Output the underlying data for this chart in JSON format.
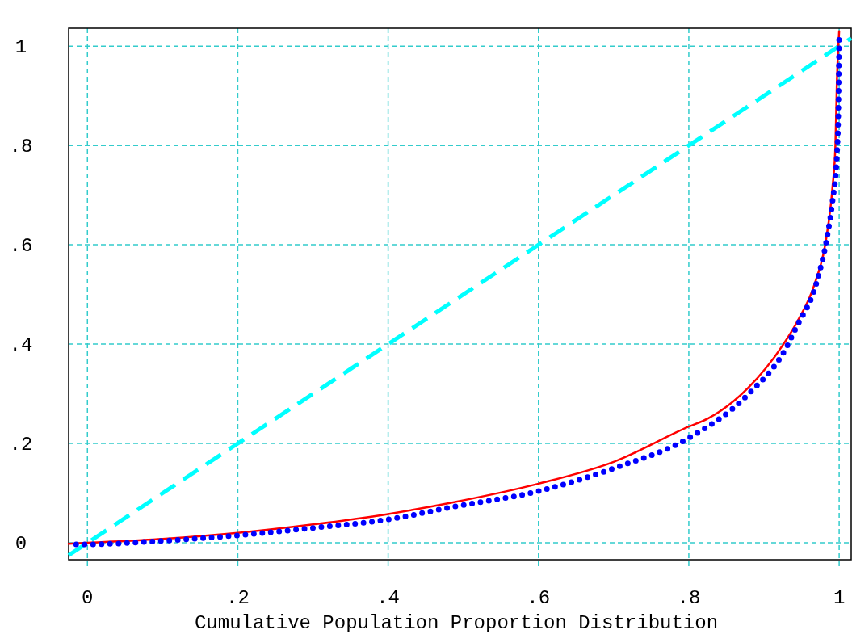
{
  "chart_data": {
    "type": "line",
    "xlabel": "Cumulative Population Proportion Distribution",
    "xlim": [
      -0.025,
      1.016
    ],
    "ylim": [
      -0.034,
      1.036
    ],
    "xticks": [
      {
        "value": 0,
        "label": "0"
      },
      {
        "value": 0.2,
        "label": ".2"
      },
      {
        "value": 0.4,
        "label": ".4"
      },
      {
        "value": 0.6,
        "label": ".6"
      },
      {
        "value": 0.8,
        "label": ".8"
      },
      {
        "value": 1,
        "label": "1"
      }
    ],
    "yticks": [
      {
        "value": 0,
        "label": "0"
      },
      {
        "value": 0.2,
        "label": ".2"
      },
      {
        "value": 0.4,
        "label": ".4"
      },
      {
        "value": 0.6,
        "label": ".6"
      },
      {
        "value": 0.8,
        "label": ".8"
      },
      {
        "value": 1,
        "label": "1"
      }
    ],
    "grid": true,
    "series": [
      {
        "color": "#00ffff",
        "line_style": "dashed",
        "x": [
          -0.025,
          1.016
        ],
        "values": [
          -0.025,
          1.016
        ]
      },
      {
        "color": "#ff0000",
        "line_style": "solid",
        "x": [
          -0.025,
          0,
          0.1,
          0.2,
          0.3,
          0.4,
          0.485,
          0.6,
          0.7,
          0.8,
          0.825,
          0.879,
          0.925,
          0.943,
          0.968,
          0.982,
          0.991,
          0.995,
          0.997,
          1.0
        ],
        "values": [
          -0.002,
          0.0,
          0.008,
          0.02,
          0.037,
          0.058,
          0.081,
          0.119,
          0.163,
          0.234,
          0.25,
          0.312,
          0.398,
          0.442,
          0.524,
          0.605,
          0.714,
          0.8,
          0.93,
          1.03
        ]
      },
      {
        "color": "#0000ff",
        "line_style": "dotted",
        "x": [
          -0.015,
          0,
          0.1,
          0.2,
          0.3,
          0.4,
          0.485,
          0.6,
          0.7,
          0.8,
          0.879,
          0.93,
          0.943,
          0.97,
          0.984,
          0.991,
          0.997,
          0.999,
          1.0
        ],
        "values": [
          -0.003,
          -0.003,
          0.004,
          0.015,
          0.03,
          0.047,
          0.072,
          0.104,
          0.15,
          0.211,
          0.299,
          0.394,
          0.434,
          0.524,
          0.616,
          0.686,
          0.78,
          0.876,
          1.02
        ]
      }
    ]
  }
}
